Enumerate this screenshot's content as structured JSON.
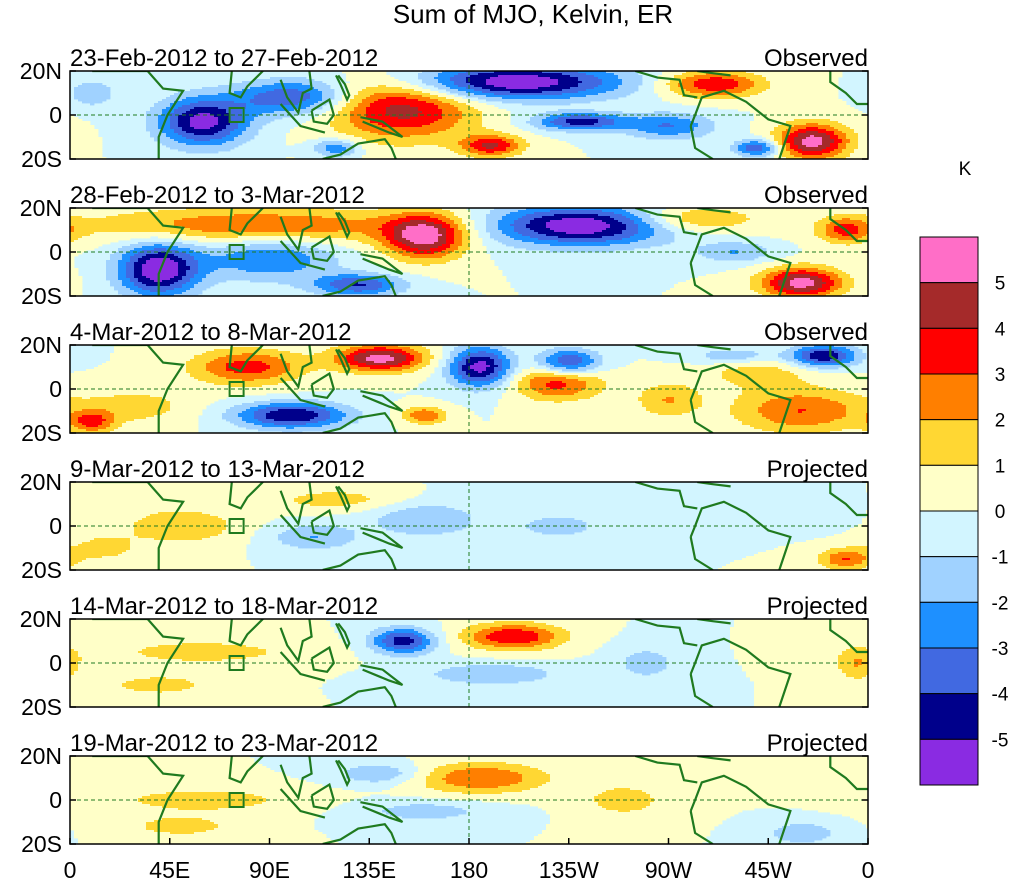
{
  "chart_data": {
    "type": "heatmap",
    "title": "Sum of MJO, Kelvin, ER",
    "units_label": "K",
    "x_ticks": [
      "0",
      "45E",
      "90E",
      "135E",
      "180",
      "135W",
      "90W",
      "45W",
      "0"
    ],
    "y_ticks": [
      "20N",
      "0",
      "20S"
    ],
    "xlim": [
      0,
      360
    ],
    "ylim": [
      -20,
      20
    ],
    "colorbar": {
      "tick_labels": [
        "5",
        "4",
        "3",
        "2",
        "1",
        "0",
        "-1",
        "-2",
        "-3",
        "-4",
        "-5"
      ],
      "colors": [
        "#ff6ec7",
        "#a52a2a",
        "#ff0000",
        "#ff7f00",
        "#ffd733",
        "#ffffc8",
        "#d2f5ff",
        "#a0d2ff",
        "#1e90ff",
        "#4169e1",
        "#00008b",
        "#8a2be2"
      ]
    },
    "panels": [
      {
        "date_range": "23-Feb-2012 to 27-Feb-2012",
        "label": "Observed",
        "blobs": [
          {
            "lon": 200,
            "lat": 15,
            "rx": 48,
            "ry": 8,
            "v": -6
          },
          {
            "lon": 230,
            "lat": -3,
            "rx": 20,
            "ry": 4,
            "v": -4.5
          },
          {
            "lon": 150,
            "lat": 3,
            "rx": 32,
            "ry": 14,
            "v": 4.5
          },
          {
            "lon": 190,
            "lat": -14,
            "rx": 14,
            "ry": 5,
            "v": 4
          },
          {
            "lon": 60,
            "lat": -3,
            "rx": 20,
            "ry": 11,
            "v": -5.5
          },
          {
            "lon": 100,
            "lat": 8,
            "rx": 25,
            "ry": 8,
            "v": -4
          },
          {
            "lon": 335,
            "lat": -12,
            "rx": 16,
            "ry": 8,
            "v": 5.5
          },
          {
            "lon": 290,
            "lat": 14,
            "rx": 22,
            "ry": 6,
            "v": 4
          },
          {
            "lon": 310,
            "lat": -15,
            "rx": 10,
            "ry": 4,
            "v": -4
          },
          {
            "lon": 270,
            "lat": -5,
            "rx": 20,
            "ry": 6,
            "v": -3
          },
          {
            "lon": 10,
            "lat": 10,
            "rx": 10,
            "ry": 6,
            "v": -2
          },
          {
            "lon": 120,
            "lat": -15,
            "rx": 10,
            "ry": 4,
            "v": -3
          }
        ]
      },
      {
        "date_range": "28-Feb-2012 to 3-Mar-2012",
        "label": "Observed",
        "blobs": [
          {
            "lon": 160,
            "lat": 7,
            "rx": 18,
            "ry": 10,
            "v": 5.5
          },
          {
            "lon": 85,
            "lat": 12,
            "rx": 75,
            "ry": 8,
            "v": 3
          },
          {
            "lon": 230,
            "lat": 12,
            "rx": 40,
            "ry": 9,
            "v": -6
          },
          {
            "lon": 280,
            "lat": 15,
            "rx": 28,
            "ry": 6,
            "v": 2.5
          },
          {
            "lon": 330,
            "lat": -14,
            "rx": 18,
            "ry": 7,
            "v": 5.5
          },
          {
            "lon": 40,
            "lat": -8,
            "rx": 18,
            "ry": 12,
            "v": -6
          },
          {
            "lon": 90,
            "lat": -3,
            "rx": 30,
            "ry": 10,
            "v": -3
          },
          {
            "lon": 130,
            "lat": -15,
            "rx": 20,
            "ry": 5,
            "v": -4
          },
          {
            "lon": 350,
            "lat": 10,
            "rx": 12,
            "ry": 6,
            "v": 3
          },
          {
            "lon": 300,
            "lat": 0,
            "rx": 18,
            "ry": 5,
            "v": -2
          }
        ]
      },
      {
        "date_range": "4-Mar-2012 to 8-Mar-2012",
        "label": "Observed",
        "blobs": [
          {
            "lon": 140,
            "lat": 14,
            "rx": 20,
            "ry": 6,
            "v": 5.5
          },
          {
            "lon": 80,
            "lat": 10,
            "rx": 25,
            "ry": 8,
            "v": 3.5
          },
          {
            "lon": 185,
            "lat": 10,
            "rx": 14,
            "ry": 9,
            "v": -5.5
          },
          {
            "lon": 225,
            "lat": 12,
            "rx": 14,
            "ry": 6,
            "v": -4.5
          },
          {
            "lon": 300,
            "lat": 15,
            "rx": 20,
            "ry": 4,
            "v": -2
          },
          {
            "lon": 340,
            "lat": 15,
            "rx": 15,
            "ry": 5,
            "v": -5
          },
          {
            "lon": 220,
            "lat": 3,
            "rx": 20,
            "ry": 8,
            "v": 3.5
          },
          {
            "lon": 330,
            "lat": -10,
            "rx": 30,
            "ry": 10,
            "v": 3
          },
          {
            "lon": 310,
            "lat": 8,
            "rx": 25,
            "ry": 8,
            "v": 1.5
          },
          {
            "lon": 100,
            "lat": -12,
            "rx": 25,
            "ry": 6,
            "v": -5
          },
          {
            "lon": 30,
            "lat": -8,
            "rx": 25,
            "ry": 8,
            "v": 1.5
          },
          {
            "lon": 10,
            "lat": -15,
            "rx": 10,
            "ry": 5,
            "v": 3
          },
          {
            "lon": 160,
            "lat": -12,
            "rx": 10,
            "ry": 4,
            "v": 3
          },
          {
            "lon": 270,
            "lat": -5,
            "rx": 15,
            "ry": 8,
            "v": 2
          }
        ]
      },
      {
        "date_range": "9-Mar-2012 to 13-Mar-2012",
        "label": "Projected",
        "blobs": [
          {
            "lon": 50,
            "lat": 0,
            "rx": 25,
            "ry": 8,
            "v": 2
          },
          {
            "lon": 120,
            "lat": 12,
            "rx": 30,
            "ry": 5,
            "v": 1.5
          },
          {
            "lon": 110,
            "lat": -5,
            "rx": 20,
            "ry": 6,
            "v": -2
          },
          {
            "lon": 160,
            "lat": 3,
            "rx": 25,
            "ry": 8,
            "v": -2
          },
          {
            "lon": 220,
            "lat": 0,
            "rx": 20,
            "ry": 6,
            "v": -1.5
          },
          {
            "lon": 350,
            "lat": -15,
            "rx": 12,
            "ry": 5,
            "v": 3
          },
          {
            "lon": 15,
            "lat": -10,
            "rx": 15,
            "ry": 6,
            "v": 1.5
          },
          {
            "lon": 330,
            "lat": 5,
            "rx": 15,
            "ry": 6,
            "v": -1
          }
        ]
      },
      {
        "date_range": "14-Mar-2012 to 18-Mar-2012",
        "label": "Projected",
        "blobs": [
          {
            "lon": 200,
            "lat": 12,
            "rx": 22,
            "ry": 6,
            "v": 4
          },
          {
            "lon": 150,
            "lat": 10,
            "rx": 14,
            "ry": 6,
            "v": -4.5
          },
          {
            "lon": 60,
            "lat": 5,
            "rx": 45,
            "ry": 6,
            "v": 1.5
          },
          {
            "lon": 40,
            "lat": -10,
            "rx": 25,
            "ry": 5,
            "v": 1.5
          },
          {
            "lon": 190,
            "lat": -5,
            "rx": 30,
            "ry": 5,
            "v": -2
          },
          {
            "lon": 260,
            "lat": 0,
            "rx": 15,
            "ry": 8,
            "v": -1.5
          },
          {
            "lon": 355,
            "lat": 0,
            "rx": 10,
            "ry": 8,
            "v": 2
          }
        ]
      },
      {
        "date_range": "19-Mar-2012 to 23-Mar-2012",
        "label": "Projected",
        "blobs": [
          {
            "lon": 185,
            "lat": 10,
            "rx": 30,
            "ry": 7,
            "v": 3
          },
          {
            "lon": 140,
            "lat": 12,
            "rx": 20,
            "ry": 5,
            "v": -2
          },
          {
            "lon": 60,
            "lat": 0,
            "rx": 45,
            "ry": 6,
            "v": 1.5
          },
          {
            "lon": 50,
            "lat": -12,
            "rx": 25,
            "ry": 5,
            "v": 1.5
          },
          {
            "lon": 160,
            "lat": -5,
            "rx": 30,
            "ry": 5,
            "v": -1.5
          },
          {
            "lon": 250,
            "lat": 0,
            "rx": 20,
            "ry": 8,
            "v": 1.5
          },
          {
            "lon": 330,
            "lat": -15,
            "rx": 15,
            "ry": 5,
            "v": -2
          }
        ]
      }
    ]
  }
}
